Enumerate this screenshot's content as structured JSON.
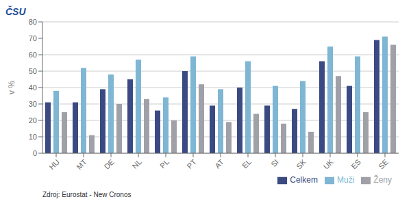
{
  "chart_data": {
    "type": "bar",
    "categories": [
      "HU",
      "MT",
      "DE",
      "NL",
      "PL",
      "PT",
      "AT",
      "EL",
      "SI",
      "SK",
      "UK",
      "ES",
      "SE"
    ],
    "series": [
      {
        "name": "Celkem",
        "color": "#3B4A82",
        "values": [
          31,
          31,
          39,
          45,
          26,
          50,
          29,
          40,
          29,
          27,
          56,
          41,
          69
        ]
      },
      {
        "name": "Muži",
        "color": "#7EB6D4",
        "values": [
          38,
          52,
          48,
          57,
          34,
          59,
          39,
          56,
          41,
          44,
          65,
          59,
          71
        ]
      },
      {
        "name": "Ženy",
        "color": "#A0A0A8",
        "values": [
          25,
          11,
          30,
          33,
          20,
          42,
          19,
          24,
          18,
          13,
          47,
          25,
          66
        ]
      }
    ],
    "ylabel": "v %",
    "ylim": [
      0,
      80
    ],
    "yticks": [
      0,
      10,
      20,
      30,
      40,
      50,
      60,
      70,
      80
    ],
    "grid": true,
    "legend": "lower right",
    "annotations": [
      "ČSU",
      "Zdroj: Eurostat - New Cronos"
    ]
  }
}
